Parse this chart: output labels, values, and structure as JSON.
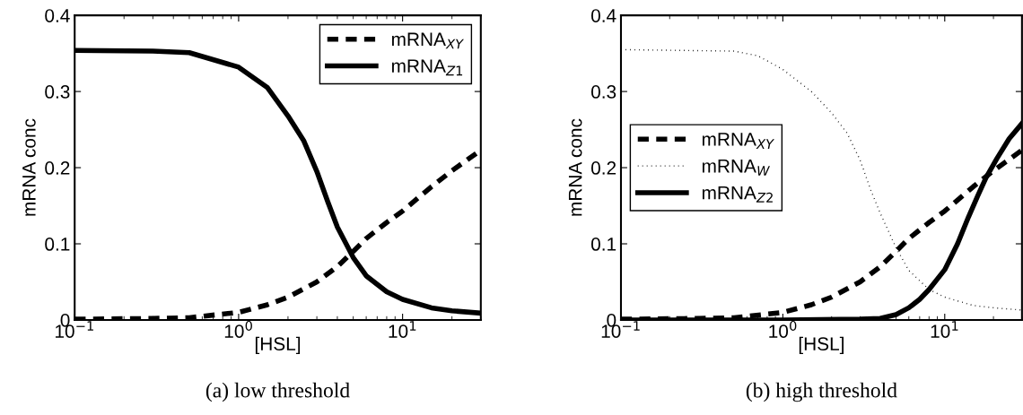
{
  "chart_data": [
    {
      "type": "line",
      "xlabel": "[HSL]",
      "ylabel": "mRNA conc",
      "annotations": [
        "(a) low threshold"
      ],
      "log": "x",
      "legend": "top right",
      "grid": false,
      "xlim": [
        0.1,
        30
      ],
      "ylim": [
        0,
        0.4
      ],
      "xticks": [
        {
          "value": 0.1,
          "label": "10$^{−1}$"
        },
        {
          "value": 1,
          "label": "10$^{0}$"
        },
        {
          "value": 10,
          "label": "10$^{1}$"
        }
      ],
      "yticks": [
        0,
        0.1,
        0.2,
        0.3,
        0.4
      ],
      "series": [
        {
          "name": "mRNA$_{XY}$",
          "color": "#000000",
          "line_style": "dashed",
          "x": [
            0.1,
            0.3,
            0.5,
            1,
            1.5,
            2,
            3,
            4,
            5,
            6,
            8,
            10,
            15,
            20,
            30
          ],
          "values": [
            0.001,
            0.002,
            0.003,
            0.01,
            0.02,
            0.03,
            0.05,
            0.07,
            0.09,
            0.107,
            0.128,
            0.143,
            0.175,
            0.196,
            0.223
          ]
        },
        {
          "name": "mRNA$_{Z1}$",
          "color": "#000000",
          "line_style": "solid",
          "x": [
            0.1,
            0.3,
            0.5,
            1,
            1.5,
            2,
            2.5,
            3,
            3.5,
            4,
            5,
            6,
            8,
            10,
            15,
            20,
            30
          ],
          "values": [
            0.354,
            0.353,
            0.351,
            0.332,
            0.305,
            0.268,
            0.235,
            0.195,
            0.155,
            0.122,
            0.082,
            0.058,
            0.037,
            0.027,
            0.016,
            0.012,
            0.009
          ]
        }
      ]
    },
    {
      "type": "line",
      "xlabel": "[HSL]",
      "ylabel": "mRNA conc",
      "annotations": [
        "(b) high threshold"
      ],
      "log": "x",
      "legend": "center left",
      "grid": false,
      "xlim": [
        0.1,
        30
      ],
      "ylim": [
        0,
        0.4
      ],
      "xticks": [
        {
          "value": 0.1,
          "label": "10$^{−1}$"
        },
        {
          "value": 1,
          "label": "10$^{0}$"
        },
        {
          "value": 10,
          "label": "10$^{1}$"
        }
      ],
      "yticks": [
        0,
        0.1,
        0.2,
        0.3,
        0.4
      ],
      "series": [
        {
          "name": "mRNA$_{XY}$",
          "color": "#000000",
          "line_style": "dashed",
          "x": [
            0.1,
            0.3,
            0.5,
            1,
            1.5,
            2,
            3,
            4,
            5,
            6,
            8,
            10,
            15,
            20,
            30
          ],
          "values": [
            0.001,
            0.002,
            0.003,
            0.01,
            0.02,
            0.03,
            0.05,
            0.07,
            0.09,
            0.107,
            0.128,
            0.143,
            0.175,
            0.196,
            0.223
          ]
        },
        {
          "name": "mRNA$_{W}$",
          "color": "#000000",
          "line_style": "dotted",
          "x": [
            0.1,
            0.5,
            0.7,
            1,
            1.5,
            2,
            2.5,
            3,
            3.5,
            4,
            5,
            6,
            8,
            10,
            15,
            20,
            30
          ],
          "values": [
            0.355,
            0.353,
            0.347,
            0.329,
            0.3,
            0.272,
            0.245,
            0.21,
            0.17,
            0.14,
            0.095,
            0.065,
            0.04,
            0.03,
            0.019,
            0.016,
            0.013
          ]
        },
        {
          "name": "mRNA$_{Z2}$",
          "color": "#000000",
          "line_style": "solid",
          "x": [
            0.1,
            1,
            3,
            4,
            5,
            6,
            7,
            8,
            10,
            12,
            14,
            16,
            18,
            21,
            25,
            30
          ],
          "values": [
            0,
            0,
            0.001,
            0.002,
            0.007,
            0.016,
            0.027,
            0.04,
            0.066,
            0.1,
            0.135,
            0.163,
            0.187,
            0.212,
            0.238,
            0.258
          ]
        }
      ]
    }
  ]
}
